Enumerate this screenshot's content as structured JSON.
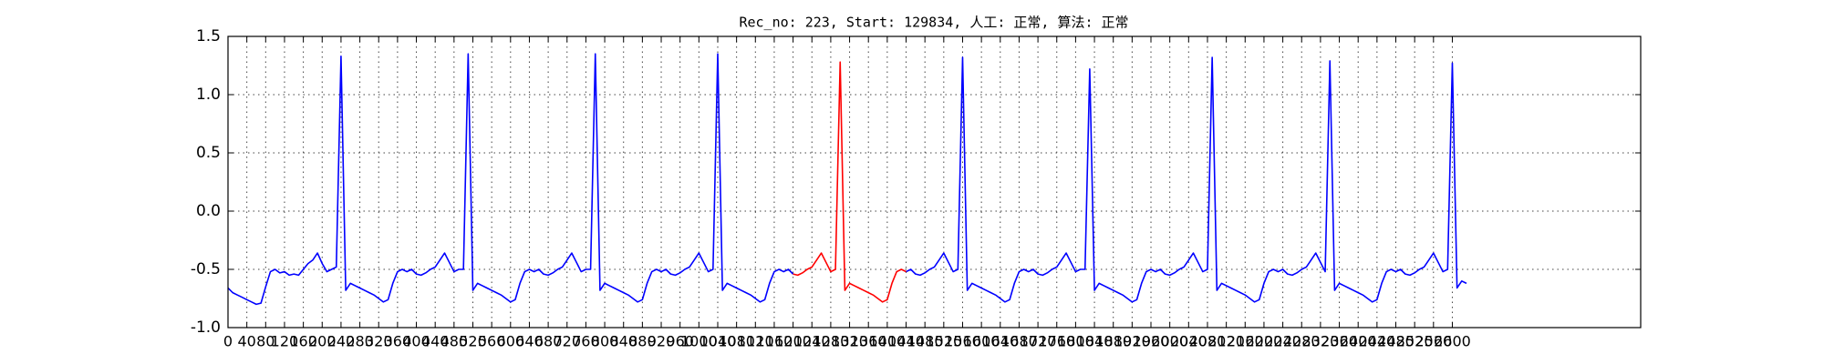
{
  "chart_data": {
    "type": "line",
    "title": "Rec_no: 223, Start: 129834, 人工: 正常, 算法: 正常",
    "x": [
      0,
      10,
      20,
      30,
      40,
      50,
      60,
      70,
      80,
      90,
      100,
      110,
      120,
      130,
      140,
      150,
      160,
      170,
      180,
      190,
      200,
      210,
      220,
      230,
      240,
      250,
      260,
      270,
      280,
      290,
      300,
      310,
      320,
      330,
      340,
      350,
      360,
      370,
      380,
      390,
      400,
      410,
      420,
      430,
      440,
      450,
      460,
      470,
      480,
      490,
      500,
      510,
      520,
      530,
      540,
      550,
      560,
      570,
      580,
      590,
      600,
      610,
      620,
      630,
      640,
      650,
      660,
      670,
      680,
      690,
      700,
      710,
      720,
      730,
      740,
      750,
      760,
      770,
      780,
      790,
      800,
      810,
      820,
      830,
      840,
      850,
      860,
      870,
      880,
      890,
      900,
      910,
      920,
      930,
      940,
      950,
      960,
      970,
      980,
      990,
      1000,
      1010,
      1020,
      1030,
      1040,
      1050,
      1060,
      1070,
      1080,
      1090,
      1100,
      1110,
      1120,
      1130,
      1140,
      1150,
      1160,
      1170,
      1180,
      1190,
      1200,
      1210,
      1220,
      1230,
      1240,
      1250,
      1260,
      1270,
      1280,
      1290,
      1300,
      1310,
      1320,
      1330,
      1340,
      1350,
      1360,
      1370,
      1380,
      1390,
      1400,
      1410,
      1420,
      1430,
      1440,
      1450,
      1460,
      1470,
      1480,
      1490,
      1500,
      1510,
      1520,
      1530,
      1540,
      1550,
      1560,
      1570,
      1580,
      1590,
      1600,
      1610,
      1620,
      1630,
      1640,
      1650,
      1660,
      1670,
      1680,
      1690,
      1700,
      1710,
      1720,
      1730,
      1740,
      1750,
      1760,
      1770,
      1780,
      1790,
      1800,
      1810,
      1820,
      1830,
      1840,
      1850,
      1860,
      1870,
      1880,
      1890,
      1900,
      1910,
      1920,
      1930,
      1940,
      1950,
      1960,
      1970,
      1980,
      1990,
      2000,
      2010,
      2020,
      2030,
      2040,
      2050,
      2060,
      2070,
      2080,
      2090,
      2100,
      2110,
      2120,
      2130,
      2140,
      2150,
      2160,
      2170,
      2180,
      2190,
      2200,
      2210,
      2220,
      2230,
      2240,
      2250,
      2260,
      2270,
      2280,
      2290,
      2300,
      2310,
      2320,
      2330,
      2340,
      2350,
      2360,
      2370,
      2380,
      2390,
      2400,
      2410,
      2420,
      2430,
      2440,
      2450,
      2460,
      2470,
      2480,
      2490,
      2500,
      2510,
      2520,
      2530,
      2540,
      2550,
      2560,
      2570,
      2580,
      2590,
      2600,
      2610,
      2620,
      2630
    ],
    "series": [
      {
        "color": "#0000ff",
        "values": [
          -0.66,
          -0.7,
          -0.72,
          -0.74,
          -0.76,
          -0.78,
          -0.8,
          -0.79,
          -0.65,
          -0.52,
          -0.5,
          -0.53,
          -0.52,
          -0.55,
          -0.54,
          -0.55,
          -0.5,
          -0.45,
          -0.42,
          -0.36,
          -0.45,
          -0.52,
          -0.5,
          -0.48,
          1.33,
          -0.68,
          -0.62,
          -0.64,
          -0.66,
          -0.68,
          -0.7,
          -0.72,
          -0.75,
          -0.78,
          -0.76,
          -0.62,
          -0.52,
          -0.5,
          -0.52,
          -0.5,
          -0.54,
          -0.55,
          -0.53,
          -0.5,
          -0.48,
          -0.42,
          -0.36,
          -0.44,
          -0.52,
          -0.5,
          -0.5,
          1.35,
          -0.68,
          -0.62,
          -0.64,
          -0.66,
          -0.68,
          -0.7,
          -0.72,
          -0.75,
          -0.78,
          -0.76,
          -0.62,
          -0.52,
          -0.5,
          -0.52,
          -0.5,
          -0.54,
          -0.55,
          -0.53,
          -0.5,
          -0.48,
          -0.42,
          -0.36,
          -0.44,
          -0.52,
          -0.5,
          -0.5,
          1.35,
          -0.68,
          -0.62,
          -0.64,
          -0.66,
          -0.68,
          -0.7,
          -0.72,
          -0.75,
          -0.78,
          -0.76,
          -0.62,
          -0.52,
          -0.5,
          -0.52,
          -0.5,
          -0.54,
          -0.55,
          -0.53,
          -0.5,
          -0.48,
          -0.42,
          -0.36,
          -0.44,
          -0.52,
          -0.5,
          1.35,
          -0.68,
          -0.62,
          -0.64,
          -0.66,
          -0.68,
          -0.7,
          -0.72,
          -0.75,
          -0.78,
          -0.76,
          -0.62,
          -0.52,
          -0.5,
          -0.52,
          -0.5,
          -0.54,
          null,
          null,
          null,
          null,
          null,
          null,
          null,
          null,
          null,
          null,
          null,
          null,
          null,
          null,
          null,
          null,
          null,
          null,
          null,
          null,
          null,
          null,
          null,
          -0.52,
          -0.5,
          -0.54,
          -0.55,
          -0.53,
          -0.5,
          -0.48,
          -0.42,
          -0.36,
          -0.44,
          -0.52,
          -0.5,
          1.32,
          -0.68,
          -0.62,
          -0.64,
          -0.66,
          -0.68,
          -0.7,
          -0.72,
          -0.75,
          -0.78,
          -0.76,
          -0.62,
          -0.52,
          -0.5,
          -0.52,
          -0.5,
          -0.54,
          -0.55,
          -0.53,
          -0.5,
          -0.48,
          -0.42,
          -0.36,
          -0.44,
          -0.52,
          -0.5,
          -0.5,
          1.22,
          -0.68,
          -0.62,
          -0.64,
          -0.66,
          -0.68,
          -0.7,
          -0.72,
          -0.75,
          -0.78,
          -0.76,
          -0.62,
          -0.52,
          -0.5,
          -0.52,
          -0.5,
          -0.54,
          -0.55,
          -0.53,
          -0.5,
          -0.48,
          -0.42,
          -0.36,
          -0.44,
          -0.52,
          -0.5,
          1.32,
          -0.68,
          -0.62,
          -0.64,
          -0.66,
          -0.68,
          -0.7,
          -0.72,
          -0.75,
          -0.78,
          -0.76,
          -0.62,
          -0.52,
          -0.5,
          -0.52,
          -0.5,
          -0.54,
          -0.55,
          -0.53,
          -0.5,
          -0.48,
          -0.42,
          -0.36,
          -0.44,
          -0.52,
          1.29,
          -0.68,
          -0.62,
          -0.64,
          -0.66,
          -0.68,
          -0.7,
          -0.72,
          -0.75,
          -0.78,
          -0.76,
          -0.62,
          -0.52,
          -0.5,
          -0.52,
          -0.5,
          -0.54,
          -0.55,
          -0.53,
          -0.5,
          -0.48,
          -0.42,
          -0.36,
          -0.44,
          -0.52,
          -0.5,
          1.27,
          -0.66,
          -0.6,
          -0.62
        ]
      },
      {
        "color": "#ff0000",
        "values": [
          null,
          null,
          null,
          null,
          null,
          null,
          null,
          null,
          null,
          null,
          null,
          null,
          null,
          null,
          null,
          null,
          null,
          null,
          null,
          null,
          null,
          null,
          null,
          null,
          null,
          null,
          null,
          null,
          null,
          null,
          null,
          null,
          null,
          null,
          null,
          null,
          null,
          null,
          null,
          null,
          null,
          null,
          null,
          null,
          null,
          null,
          null,
          null,
          null,
          null,
          null,
          null,
          null,
          null,
          null,
          null,
          null,
          null,
          null,
          null,
          null,
          null,
          null,
          null,
          null,
          null,
          null,
          null,
          null,
          null,
          null,
          null,
          null,
          null,
          null,
          null,
          null,
          null,
          null,
          null,
          null,
          null,
          null,
          null,
          null,
          null,
          null,
          null,
          null,
          null,
          null,
          null,
          null,
          null,
          null,
          null,
          null,
          null,
          null,
          null,
          null,
          null,
          null,
          null,
          null,
          null,
          null,
          null,
          null,
          null,
          null,
          null,
          null,
          null,
          null,
          null,
          null,
          null,
          null,
          null,
          -0.54,
          -0.55,
          -0.53,
          -0.5,
          -0.48,
          -0.42,
          -0.36,
          -0.44,
          -0.52,
          -0.5,
          1.28,
          -0.68,
          -0.62,
          -0.64,
          -0.66,
          -0.68,
          -0.7,
          -0.72,
          -0.75,
          -0.78,
          -0.76,
          -0.62,
          -0.52,
          -0.5,
          -0.52,
          null,
          null,
          null,
          null,
          null,
          null,
          null,
          null,
          null,
          null,
          null,
          null,
          null,
          null,
          null,
          null,
          null,
          null,
          null,
          null,
          null,
          null,
          null,
          null,
          null,
          null,
          null,
          null,
          null,
          null,
          null,
          null,
          null,
          null,
          null,
          null,
          null,
          null,
          null,
          null,
          null,
          null,
          null,
          null,
          null,
          null,
          null,
          null,
          null,
          null,
          null,
          null,
          null,
          null,
          null,
          null,
          null,
          null,
          null,
          null,
          null,
          null,
          null,
          null,
          null,
          null,
          null,
          null,
          null,
          null,
          null,
          null,
          null,
          null,
          null,
          null,
          null,
          null,
          null,
          null,
          null,
          null,
          null,
          null,
          null,
          null,
          null,
          null,
          null,
          null,
          null,
          null,
          null,
          null,
          null,
          null,
          null,
          null,
          null,
          null,
          null,
          null,
          null,
          null,
          null,
          null,
          null,
          null,
          null,
          null,
          null,
          null,
          null,
          null,
          null,
          null,
          null,
          null,
          null
        ]
      }
    ],
    "xlim": [
      0,
      3000
    ],
    "xticks": [
      0,
      40,
      80,
      120,
      160,
      200,
      240,
      280,
      320,
      360,
      400,
      440,
      480,
      520,
      560,
      600,
      640,
      680,
      720,
      760,
      800,
      840,
      880,
      920,
      960,
      1000,
      1040,
      1080,
      1120,
      1160,
      1200,
      1240,
      1280,
      1320,
      1360,
      1400,
      1440,
      1480,
      1520,
      1560,
      1600,
      1640,
      1680,
      1720,
      1760,
      1800,
      1840,
      1880,
      1920,
      1960,
      2000,
      2040,
      2080,
      2120,
      2160,
      2200,
      2240,
      2280,
      2320,
      2360,
      2400,
      2440,
      2480,
      2520,
      2560,
      2600
    ],
    "ylim": [
      -1.0,
      1.5
    ],
    "yticks": [
      {
        "value": -1.0,
        "label": "-1.0"
      },
      -0.5,
      {
        "value": 0.0,
        "label": "0.0"
      },
      0.5,
      {
        "value": 1.0,
        "label": "1.0"
      },
      1.5
    ],
    "grid": true
  }
}
